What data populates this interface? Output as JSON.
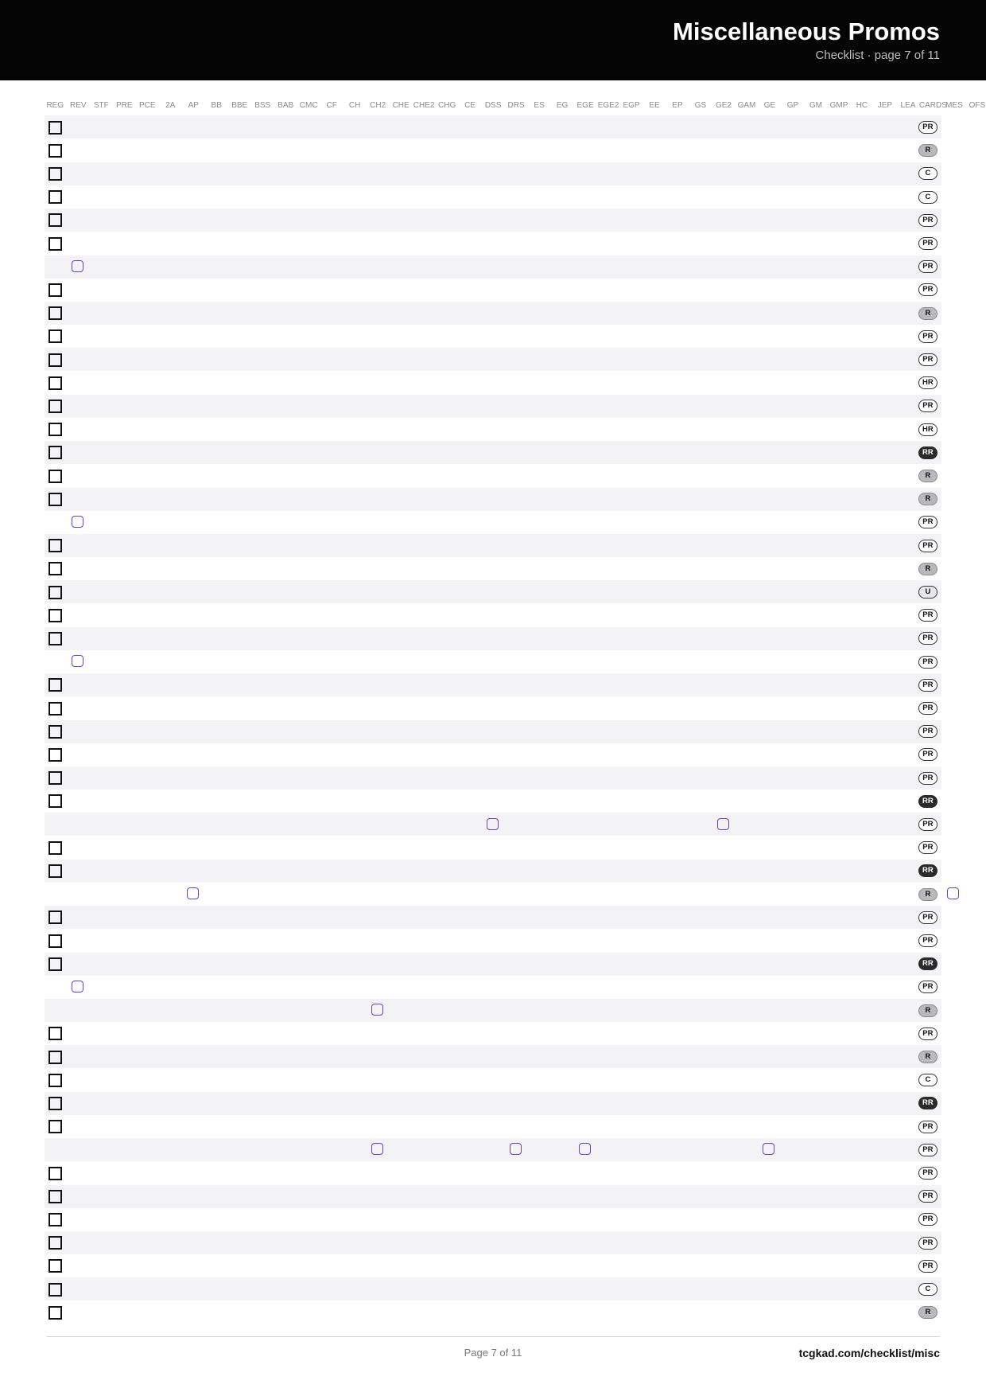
{
  "header": {
    "title": "Miscellaneous Promos",
    "subtitle": "Checklist · page 7 of 11"
  },
  "columns": [
    "REG",
    "REV",
    "STF",
    "PRE",
    "PCE",
    "2A",
    "AP",
    "BB",
    "BBE",
    "BSS",
    "BAB",
    "CMC",
    "CF",
    "CH",
    "CH2",
    "CHE",
    "CHE2",
    "CHG",
    "CE",
    "DSS",
    "DRS",
    "ES",
    "EG",
    "EGE",
    "EGE2",
    "EGP",
    "EE",
    "EP",
    "GS",
    "GE2",
    "GAM",
    "GE",
    "GP",
    "GM",
    "GMP",
    "HC",
    "JEP",
    "LEA",
    "CARDS",
    "MES",
    "OFS"
  ],
  "rarity_column": "CARDS",
  "rows": [
    {
      "sets": [
        "REG"
      ],
      "rarity": "PR"
    },
    {
      "sets": [
        "REG"
      ],
      "rarity": "R"
    },
    {
      "sets": [
        "REG"
      ],
      "rarity": "C"
    },
    {
      "sets": [
        "REG"
      ],
      "rarity": "C"
    },
    {
      "sets": [
        "REG"
      ],
      "rarity": "PR"
    },
    {
      "sets": [
        "REG"
      ],
      "rarity": "PR"
    },
    {
      "sets": [
        "REV"
      ],
      "rarity": "PR"
    },
    {
      "sets": [
        "REG"
      ],
      "rarity": "PR"
    },
    {
      "sets": [
        "REG"
      ],
      "rarity": "R"
    },
    {
      "sets": [
        "REG"
      ],
      "rarity": "PR"
    },
    {
      "sets": [
        "REG"
      ],
      "rarity": "PR"
    },
    {
      "sets": [
        "REG"
      ],
      "rarity": "HR"
    },
    {
      "sets": [
        "REG"
      ],
      "rarity": "PR"
    },
    {
      "sets": [
        "REG"
      ],
      "rarity": "HR"
    },
    {
      "sets": [
        "REG"
      ],
      "rarity": "RR"
    },
    {
      "sets": [
        "REG"
      ],
      "rarity": "R"
    },
    {
      "sets": [
        "REG"
      ],
      "rarity": "R"
    },
    {
      "sets": [
        "REV"
      ],
      "rarity": "PR"
    },
    {
      "sets": [
        "REG"
      ],
      "rarity": "PR"
    },
    {
      "sets": [
        "REG"
      ],
      "rarity": "R"
    },
    {
      "sets": [
        "REG"
      ],
      "rarity": "U"
    },
    {
      "sets": [
        "REG"
      ],
      "rarity": "PR"
    },
    {
      "sets": [
        "REG"
      ],
      "rarity": "PR"
    },
    {
      "sets": [
        "REV"
      ],
      "rarity": "PR"
    },
    {
      "sets": [
        "REG"
      ],
      "rarity": "PR"
    },
    {
      "sets": [
        "REG"
      ],
      "rarity": "PR"
    },
    {
      "sets": [
        "REG"
      ],
      "rarity": "PR"
    },
    {
      "sets": [
        "REG"
      ],
      "rarity": "PR"
    },
    {
      "sets": [
        "REG"
      ],
      "rarity": "PR"
    },
    {
      "sets": [
        "REG"
      ],
      "rarity": "RR"
    },
    {
      "sets": [
        "DSS",
        "GE2"
      ],
      "rarity": "PR"
    },
    {
      "sets": [
        "REG"
      ],
      "rarity": "PR"
    },
    {
      "sets": [
        "REG"
      ],
      "rarity": "RR"
    },
    {
      "sets": [
        "AP",
        "MES"
      ],
      "rarity": "R"
    },
    {
      "sets": [
        "REG"
      ],
      "rarity": "PR"
    },
    {
      "sets": [
        "REG"
      ],
      "rarity": "PR"
    },
    {
      "sets": [
        "REG"
      ],
      "rarity": "RR"
    },
    {
      "sets": [
        "REV"
      ],
      "rarity": "PR"
    },
    {
      "sets": [
        "CH2"
      ],
      "rarity": "R"
    },
    {
      "sets": [
        "REG"
      ],
      "rarity": "PR"
    },
    {
      "sets": [
        "REG"
      ],
      "rarity": "R"
    },
    {
      "sets": [
        "REG"
      ],
      "rarity": "C"
    },
    {
      "sets": [
        "REG"
      ],
      "rarity": "RR"
    },
    {
      "sets": [
        "REG"
      ],
      "rarity": "PR"
    },
    {
      "sets": [
        "CH2",
        "DRS",
        "EGE",
        "GE"
      ],
      "rarity": "PR"
    },
    {
      "sets": [
        "REG"
      ],
      "rarity": "PR"
    },
    {
      "sets": [
        "REG"
      ],
      "rarity": "PR"
    },
    {
      "sets": [
        "REG"
      ],
      "rarity": "PR"
    },
    {
      "sets": [
        "REG"
      ],
      "rarity": "PR"
    },
    {
      "sets": [
        "REG"
      ],
      "rarity": "PR"
    },
    {
      "sets": [
        "REG"
      ],
      "rarity": "C"
    },
    {
      "sets": [
        "REG"
      ],
      "rarity": "R"
    }
  ],
  "footer": {
    "page": "Page 7 of 11",
    "url": "tcgkad.com/checklist/misc"
  }
}
